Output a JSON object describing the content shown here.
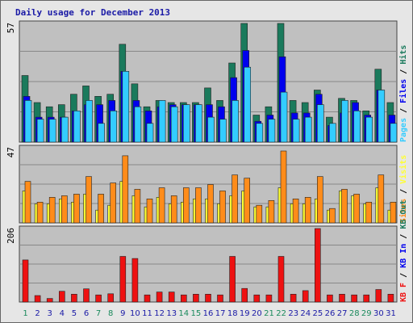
{
  "title": "Daily usage for December 2013",
  "colors": {
    "hits": "#1a7a5c",
    "files": "#0000ee",
    "pages": "#33ccff",
    "visits": "#ffff33",
    "sites": "#ff8c1a",
    "kbf": "#ee1111",
    "grid": "#888888",
    "panel": "#c0c0c0",
    "title": "#1a1aa6",
    "weekend_day": "#1a8a5c",
    "weekday": "#1a1aa6"
  },
  "chart_data": [
    {
      "type": "bar",
      "name": "hits-files-pages",
      "max_label": "57",
      "ymax": 57,
      "right_label_parts": [
        {
          "text": "Pages",
          "color_key": "pages"
        },
        {
          "text": " / ",
          "color_key": "sep"
        },
        {
          "text": "Files",
          "color_key": "files"
        },
        {
          "text": " / ",
          "color_key": "sep"
        },
        {
          "text": "Hits",
          "color_key": "hits"
        }
      ],
      "categories": [
        "1",
        "2",
        "3",
        "4",
        "5",
        "6",
        "7",
        "8",
        "9",
        "10",
        "11",
        "12",
        "13",
        "14",
        "15",
        "16",
        "17",
        "18",
        "19",
        "20",
        "21",
        "22",
        "23",
        "24",
        "25",
        "26",
        "27",
        "28",
        "29",
        "30",
        "31"
      ],
      "series": [
        {
          "name": "Hits",
          "color_key": "hits",
          "values": [
            32,
            19,
            17,
            18,
            23,
            27,
            22,
            23,
            47,
            28,
            17,
            20,
            19,
            19,
            19,
            26,
            20,
            38,
            57,
            13,
            17,
            57,
            20,
            19,
            25,
            12,
            21,
            20,
            15,
            35,
            19
          ]
        },
        {
          "name": "Files",
          "color_key": "files",
          "values": [
            22,
            12,
            12,
            12,
            15,
            18,
            18,
            20,
            34,
            20,
            15,
            17,
            18,
            18,
            18,
            18,
            17,
            31,
            44,
            10,
            13,
            41,
            14,
            14,
            23,
            8,
            14,
            19,
            13,
            25,
            13
          ]
        },
        {
          "name": "Pages",
          "color_key": "pages",
          "values": [
            20,
            11,
            11,
            12,
            15,
            20,
            9,
            15,
            34,
            17,
            9,
            20,
            17,
            18,
            18,
            12,
            11,
            20,
            36,
            9,
            11,
            24,
            11,
            12,
            18,
            9,
            20,
            15,
            12,
            25,
            9
          ]
        }
      ]
    },
    {
      "type": "bar",
      "name": "visits-sites",
      "max_label": "47",
      "ymax": 47,
      "right_label_parts": [
        {
          "text": "Sites",
          "color_key": "sites"
        },
        {
          "text": " / ",
          "color_key": "sep"
        },
        {
          "text": "Visits",
          "color_key": "visits"
        }
      ],
      "categories": [
        "1",
        "2",
        "3",
        "4",
        "5",
        "6",
        "7",
        "8",
        "9",
        "10",
        "11",
        "12",
        "13",
        "14",
        "15",
        "16",
        "17",
        "18",
        "19",
        "20",
        "21",
        "22",
        "23",
        "24",
        "25",
        "26",
        "27",
        "28",
        "29",
        "30",
        "31"
      ],
      "series": [
        {
          "name": "Visits",
          "color_key": "visits",
          "values": [
            20,
            12,
            12,
            15,
            13,
            18,
            8,
            11,
            26,
            17,
            10,
            16,
            12,
            13,
            15,
            15,
            12,
            17,
            20,
            10,
            10,
            22,
            12,
            12,
            15,
            8,
            20,
            17,
            12,
            22,
            8
          ]
        },
        {
          "name": "Sites",
          "color_key": "sites",
          "values": [
            26,
            13,
            16,
            17,
            18,
            29,
            18,
            25,
            42,
            21,
            15,
            22,
            17,
            22,
            22,
            24,
            20,
            30,
            28,
            11,
            14,
            45,
            15,
            16,
            29,
            9,
            21,
            18,
            13,
            30,
            13
          ]
        }
      ]
    },
    {
      "type": "bar",
      "name": "kbf",
      "max_label": "206",
      "ymax": 206,
      "right_label_parts": [
        {
          "text": "KB F",
          "color_key": "kbf"
        },
        {
          "text": " / ",
          "color_key": "sep"
        },
        {
          "text": "KB In",
          "color_key": "files"
        },
        {
          "text": " / ",
          "color_key": "sep"
        },
        {
          "text": "KB Out",
          "color_key": "hits"
        }
      ],
      "categories": [
        "1",
        "2",
        "3",
        "4",
        "5",
        "6",
        "7",
        "8",
        "9",
        "10",
        "11",
        "12",
        "13",
        "14",
        "15",
        "16",
        "17",
        "18",
        "19",
        "20",
        "21",
        "22",
        "23",
        "24",
        "25",
        "26",
        "27",
        "28",
        "29",
        "30",
        "31"
      ],
      "series": [
        {
          "name": "KB F",
          "color_key": "kbf",
          "values": [
            118,
            18,
            10,
            30,
            22,
            37,
            20,
            23,
            128,
            122,
            20,
            28,
            28,
            20,
            22,
            22,
            20,
            128,
            38,
            20,
            20,
            128,
            22,
            32,
            206,
            20,
            22,
            20,
            20,
            35,
            22
          ]
        }
      ]
    }
  ],
  "day_axis": {
    "labels": [
      "1",
      "2",
      "3",
      "4",
      "5",
      "6",
      "7",
      "8",
      "9",
      "10",
      "11",
      "12",
      "13",
      "14",
      "15",
      "16",
      "17",
      "18",
      "19",
      "20",
      "21",
      "22",
      "23",
      "24",
      "25",
      "26",
      "27",
      "28",
      "29",
      "30",
      "31"
    ],
    "weekend": [
      "1",
      "7",
      "8",
      "14",
      "15",
      "21",
      "22",
      "28",
      "29"
    ]
  }
}
